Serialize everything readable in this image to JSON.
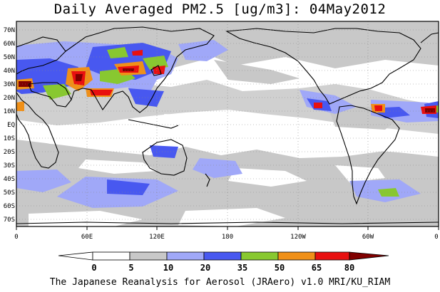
{
  "title": "Daily Averaged PM2.5 [ug/m3]: 04May2012",
  "footer": "The Japanese Reanalysis for Aerosol (JRAero) v1.0 MRI/KU_RIAM",
  "latitude_labels": [
    "70N",
    "60N",
    "50N",
    "40N",
    "30N",
    "20N",
    "10N",
    "EQ",
    "10S",
    "20S",
    "30S",
    "40S",
    "50S",
    "60S",
    "70S"
  ],
  "longitude_labels": [
    "0",
    "60E",
    "120E",
    "180",
    "120W",
    "60W",
    "0"
  ],
  "colorbar": {
    "levels": [
      "0",
      "5",
      "10",
      "20",
      "35",
      "50",
      "65",
      "80"
    ],
    "colors": [
      "#ffffff",
      "#c8c8c8",
      "#a0a8f8",
      "#4858f0",
      "#88c830",
      "#f09018",
      "#e81010",
      "#800000"
    ]
  }
}
